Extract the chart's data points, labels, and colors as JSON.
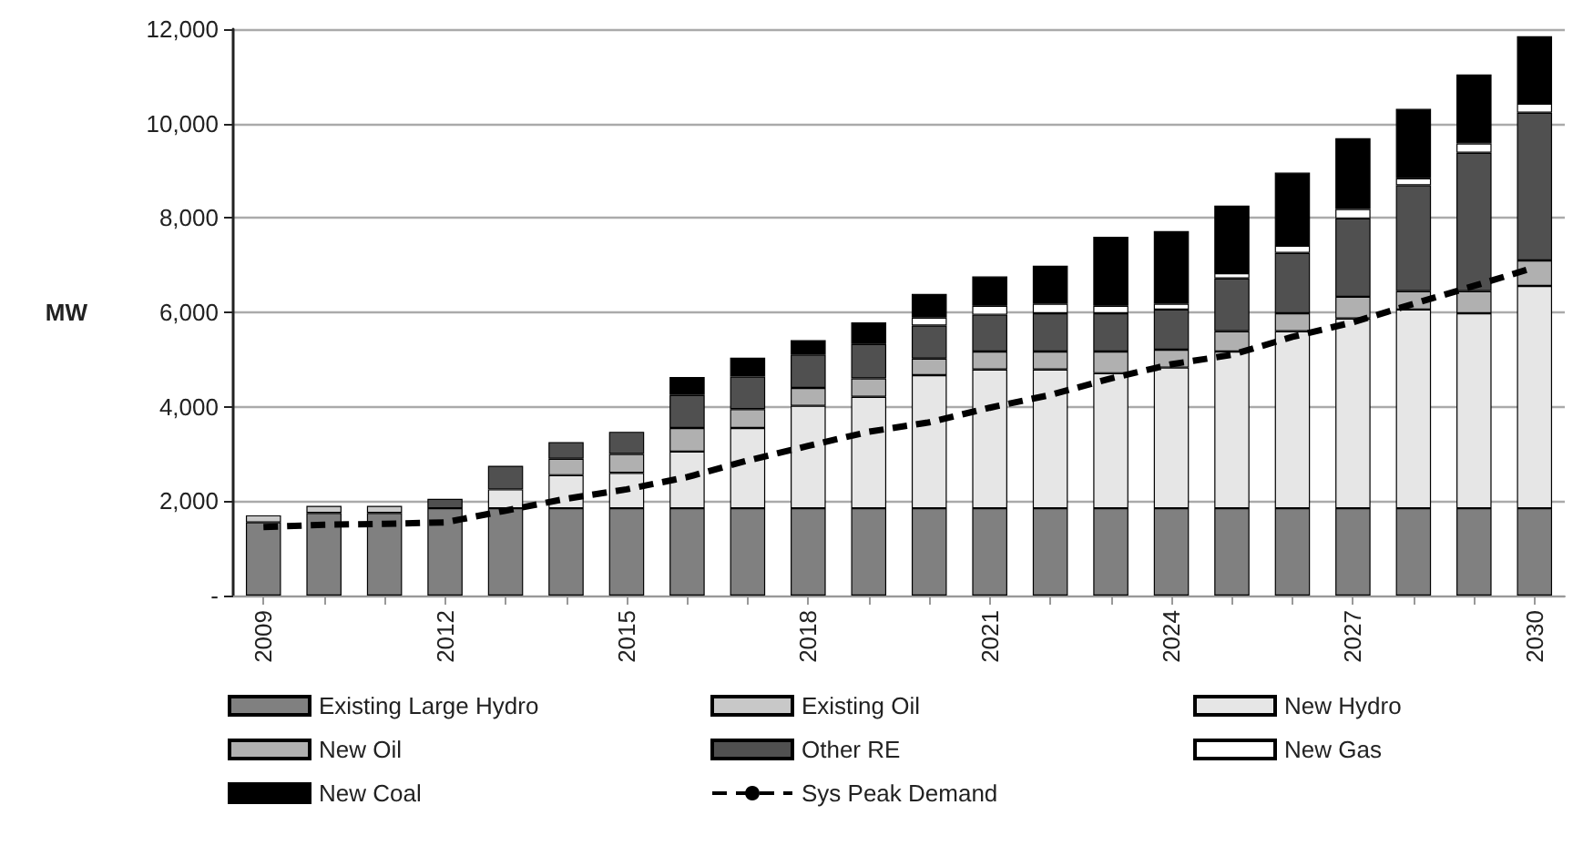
{
  "chart_data": {
    "type": "bar",
    "stacked": true,
    "ylabel": "MW",
    "categories": [
      "2009",
      null,
      null,
      "2012",
      null,
      null,
      "2015",
      null,
      null,
      "2018",
      null,
      null,
      "2021",
      null,
      null,
      "2024",
      null,
      null,
      "2027",
      null,
      null,
      "2030"
    ],
    "series": [
      {
        "name": "Existing Large Hydro",
        "color": "#808080",
        "values": [
          1550,
          1750,
          1750,
          1850,
          1850,
          1850,
          1850,
          1850,
          1850,
          1850,
          1850,
          1850,
          1850,
          1850,
          1850,
          1850,
          1850,
          1850,
          1850,
          1850,
          1850,
          1850
        ]
      },
      {
        "name": "Existing Oil",
        "color": "#c8c8c8",
        "values": [
          150,
          150,
          150,
          null,
          null,
          null,
          null,
          null,
          null,
          null,
          null,
          null,
          null,
          null,
          null,
          null,
          null,
          null,
          null,
          null,
          null,
          null
        ]
      },
      {
        "name": "New Hydro",
        "color": "#e6e6e6",
        "values": [
          null,
          null,
          null,
          null,
          400,
          700,
          750,
          1200,
          1700,
          2170,
          2360,
          2820,
          2940,
          2940,
          2860,
          2980,
          3320,
          3750,
          4020,
          4210,
          4130,
          4710
        ]
      },
      {
        "name": "New Oil",
        "color": "#b0b0b0",
        "values": [
          null,
          null,
          null,
          null,
          null,
          350,
          400,
          500,
          400,
          380,
          390,
          350,
          380,
          380,
          460,
          380,
          430,
          380,
          460,
          390,
          470,
          540
        ]
      },
      {
        "name": "Other RE",
        "color": "#505050",
        "values": [
          null,
          null,
          null,
          200,
          500,
          350,
          470,
          700,
          690,
          700,
          730,
          700,
          780,
          810,
          810,
          850,
          1120,
          1280,
          1660,
          2240,
          2930,
          3130
        ]
      },
      {
        "name": "New Gas",
        "color": "#ffffff",
        "values": [
          null,
          null,
          null,
          null,
          null,
          null,
          null,
          null,
          null,
          null,
          null,
          170,
          190,
          200,
          160,
          120,
          110,
          150,
          200,
          150,
          200,
          190
        ]
      },
      {
        "name": "New Coal",
        "color": "#000000",
        "values": [
          null,
          null,
          null,
          null,
          null,
          null,
          null,
          380,
          400,
          310,
          460,
          500,
          620,
          810,
          1460,
          1540,
          1430,
          1550,
          1500,
          1470,
          1460,
          1430
        ]
      },
      {
        "name": "Sys Peak Demand",
        "type": "line",
        "color": "#000000",
        "line_style": "dashed",
        "marker": "none",
        "values": [
          1450,
          1500,
          1520,
          1550,
          1800,
          2050,
          2250,
          2510,
          2860,
          3170,
          3470,
          3670,
          3980,
          4250,
          4600,
          4900,
          5100,
          5480,
          5790,
          6180,
          6560,
          6950
        ]
      }
    ],
    "ylim": [
      0,
      12000
    ],
    "yticks": [
      {
        "value": 0,
        "label": "-"
      },
      {
        "value": 2000,
        "label": "2,000"
      },
      {
        "value": 4000,
        "label": "4,000"
      },
      {
        "value": 6000,
        "label": "6,000"
      },
      {
        "value": 8000,
        "label": "8,000"
      },
      {
        "value": 10000,
        "label": "10,000"
      },
      {
        "value": 12000,
        "label": "12,000"
      }
    ],
    "grid": "y",
    "legend": "bottom"
  }
}
